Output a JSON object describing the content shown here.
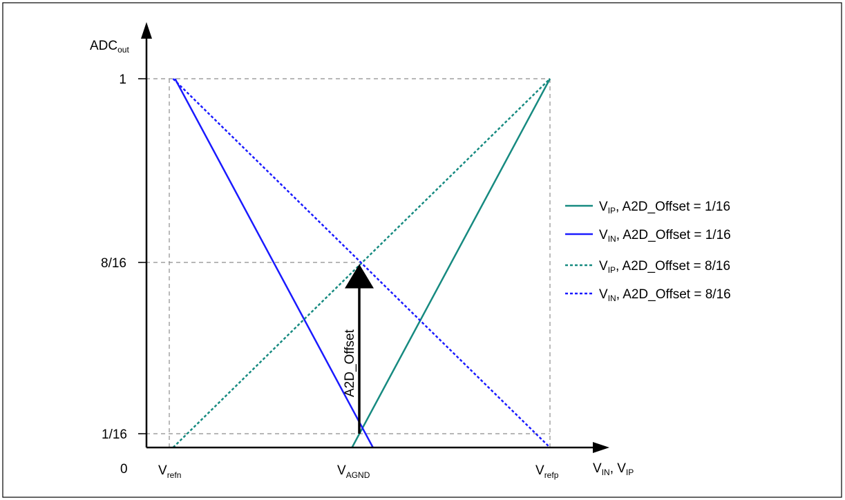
{
  "colors": {
    "teal": "#168a80",
    "blue": "#1a1aff",
    "guide": "#8c8c8c",
    "axis": "#000000"
  },
  "y_axis": {
    "label_main": "ADC",
    "label_sub": "out",
    "ticks": [
      "1",
      "8/16",
      "1/16"
    ],
    "origin_label": "0"
  },
  "x_axis": {
    "label_v1": "V",
    "label_s1": "IN",
    "label_sep": ", V",
    "label_s2": "IP",
    "ticks": [
      {
        "main": "V",
        "sub": "refn"
      },
      {
        "main": "V",
        "sub": "AGND"
      },
      {
        "main": "V",
        "sub": "refp"
      }
    ]
  },
  "arrow_label": "A2D_Offset",
  "legend": [
    {
      "main": "V",
      "sub": "IP",
      "text": ", A2D_Offset = 1/16",
      "color": "#168a80",
      "dash": "solid"
    },
    {
      "main": "V",
      "sub": "IN",
      "text": ", A2D_Offset = 1/16",
      "color": "#1a1aff",
      "dash": "solid"
    },
    {
      "main": "V",
      "sub": "IP",
      "text": ", A2D_Offset = 8/16",
      "color": "#168a80",
      "dash": "dotted"
    },
    {
      "main": "V",
      "sub": "IN",
      "text": ", A2D_Offset = 8/16",
      "color": "#1a1aff",
      "dash": "dotted"
    }
  ],
  "chart_data": {
    "type": "line",
    "xlabel": "VIN, VIP",
    "ylabel": "ADCout",
    "x_ticks": [
      "Vrefn",
      "VAGND",
      "Vrefp"
    ],
    "y_ticks": [
      0,
      0.0625,
      0.5,
      1
    ],
    "x_reference_values": {
      "Vrefn": -1,
      "VAGND": 0,
      "Vrefp": 1
    },
    "xlim": [
      -1,
      1
    ],
    "ylim": [
      0,
      1
    ],
    "series": [
      {
        "name": "VIP, A2D_Offset = 1/16",
        "style": "solid",
        "color": "teal",
        "x": [
          -0.04,
          1.0
        ],
        "y": [
          0.0,
          1.0
        ]
      },
      {
        "name": "VIN, A2D_Offset = 1/16",
        "style": "solid",
        "color": "blue",
        "x": [
          -0.97,
          0.07
        ],
        "y": [
          1.0,
          0.0
        ]
      },
      {
        "name": "VIP, A2D_Offset = 8/16",
        "style": "dotted",
        "color": "teal",
        "x": [
          -0.98,
          1.0
        ],
        "y": [
          0.0,
          1.0
        ]
      },
      {
        "name": "VIN, A2D_Offset = 8/16",
        "style": "dotted",
        "color": "blue",
        "x": [
          -0.98,
          1.0
        ],
        "y": [
          1.0,
          0.0
        ]
      }
    ],
    "annotations": [
      {
        "text": "A2D_Offset",
        "type": "arrow",
        "x": 0,
        "from_y": 0.0625,
        "to_y": 0.5
      }
    ],
    "grid": false,
    "legend_position": "right"
  }
}
